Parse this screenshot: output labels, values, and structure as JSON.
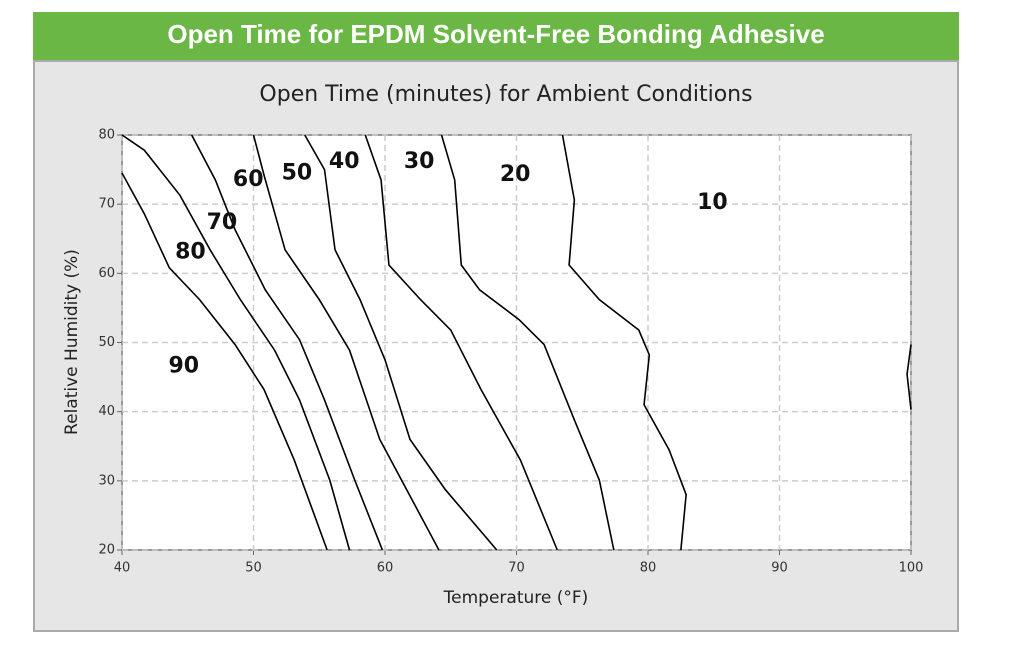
{
  "header": {
    "title": "Open Time for EPDM Solvent-Free Bonding Adhesive"
  },
  "chart_data": {
    "type": "contour",
    "title": "Open Time (minutes) for Ambient Conditions",
    "x_label": "Temperature (°F)",
    "y_label": "Relative Humidity (%)",
    "xlim": [
      40,
      100
    ],
    "ylim": [
      20,
      80
    ],
    "xticks": [
      40,
      50,
      60,
      70,
      80,
      90,
      100
    ],
    "yticks": [
      20,
      30,
      40,
      50,
      60,
      70,
      80
    ],
    "grid": true,
    "line_color": "#000000",
    "lines": [
      {
        "x": [
          40,
          41.7,
          43.6,
          45.9,
          48.6,
          50.8,
          53.1,
          55.6
        ],
        "y": [
          74.5,
          68.6,
          60.8,
          56.2,
          49.7,
          43.2,
          33,
          20
        ]
      },
      {
        "x": [
          40,
          41.7,
          44.4,
          46.7,
          49,
          51.6,
          53.5,
          55.8,
          57.3
        ],
        "y": [
          80,
          77.8,
          71.3,
          63.4,
          56.2,
          48.9,
          41.7,
          30.1,
          20
        ]
      },
      {
        "x": [
          45.3,
          47.1,
          48.6,
          50.9,
          53.5,
          55.4,
          57.7,
          59.8
        ],
        "y": [
          80,
          73.5,
          66.3,
          57.6,
          50.4,
          41.7,
          30.1,
          20
        ]
      },
      {
        "x": [
          50,
          50.8,
          52.4,
          55,
          57.3,
          59.6,
          64.1
        ],
        "y": [
          80,
          74.2,
          63.4,
          56.2,
          48.9,
          36,
          20
        ]
      },
      {
        "x": [
          53.9,
          55.4,
          56.2,
          58.1,
          60,
          61.9,
          64.6,
          68.5
        ],
        "y": [
          80,
          75,
          63.4,
          56.2,
          47.5,
          36,
          28.7,
          20
        ]
      },
      {
        "x": [
          58.5,
          59.7,
          60.3,
          62.7,
          65,
          67.3,
          70.3,
          73.1
        ],
        "y": [
          80,
          73.5,
          61.2,
          56.2,
          51.8,
          43.2,
          33,
          20
        ]
      },
      {
        "x": [
          64.3,
          65.3,
          65.8,
          67.2,
          70.2,
          72.1,
          74.4,
          76.3,
          77.4
        ],
        "y": [
          80,
          73.5,
          61.2,
          57.6,
          53.3,
          49.7,
          38.8,
          30.1,
          20
        ]
      },
      {
        "x": [
          73.5,
          74.4,
          74,
          76.3,
          79.3,
          80.1,
          79.7,
          81.6,
          82.9,
          82.5
        ],
        "y": [
          80,
          70.6,
          61.2,
          56.2,
          51.8,
          48.2,
          41,
          34.5,
          28,
          20
        ]
      },
      {
        "x": [
          100,
          99.7,
          100
        ],
        "y": [
          49.7,
          45.4,
          40.3
        ]
      }
    ],
    "labels": [
      {
        "text": "90",
        "x": 44.7,
        "y": 46.5
      },
      {
        "text": "80",
        "x": 45.2,
        "y": 63
      },
      {
        "text": "70",
        "x": 47.6,
        "y": 67.3
      },
      {
        "text": "60",
        "x": 49.6,
        "y": 73.5
      },
      {
        "text": "50",
        "x": 53.3,
        "y": 74.4
      },
      {
        "text": "40",
        "x": 56.9,
        "y": 76.1
      },
      {
        "text": "30",
        "x": 62.6,
        "y": 76.1
      },
      {
        "text": "20",
        "x": 69.9,
        "y": 74.2
      },
      {
        "text": "10",
        "x": 84.9,
        "y": 70.2
      }
    ]
  }
}
